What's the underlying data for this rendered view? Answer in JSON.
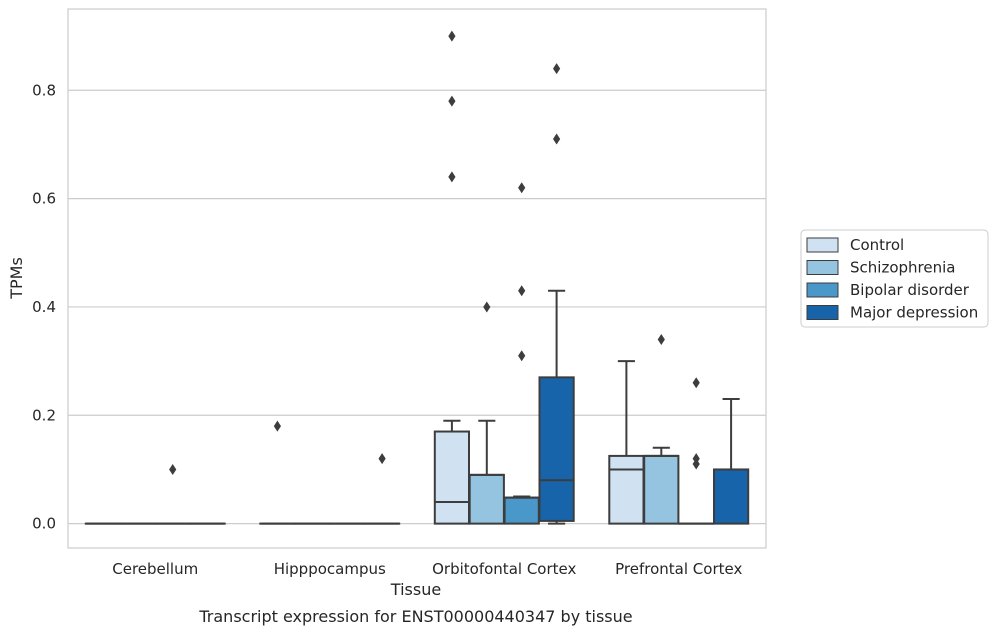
{
  "chart_data": {
    "type": "box",
    "title": "",
    "caption": "Transcript expression for ENST00000440347 by tissue",
    "xlabel": "Tissue",
    "ylabel": "TPMs",
    "ylim": [
      -0.045,
      0.95
    ],
    "yticks": [
      "0.0",
      "0.2",
      "0.4",
      "0.6",
      "0.8"
    ],
    "ytick_values": [
      0.0,
      0.2,
      0.4,
      0.6,
      0.8
    ],
    "grid": "horizontal",
    "legend_position": "right",
    "categories": [
      "Cerebellum",
      "Hipppocampus",
      "Orbitofontal Cortex",
      "Prefrontal Cortex"
    ],
    "series": [
      {
        "name": "Control",
        "color": "#d0e1f2",
        "boxes": [
          {
            "q1": 0,
            "median": 0,
            "q3": 0,
            "whislo": 0,
            "whishi": 0,
            "fliers": []
          },
          {
            "q1": 0,
            "median": 0,
            "q3": 0,
            "whislo": 0,
            "whishi": 0,
            "fliers": [
              0.18
            ]
          },
          {
            "q1": 0,
            "median": 0.04,
            "q3": 0.17,
            "whislo": 0,
            "whishi": 0.19,
            "fliers": [
              0.64,
              0.78,
              0.9
            ]
          },
          {
            "q1": 0,
            "median": 0.1,
            "q3": 0.125,
            "whislo": 0,
            "whishi": 0.3,
            "fliers": []
          }
        ]
      },
      {
        "name": "Schizophrenia",
        "color": "#94c4df",
        "boxes": [
          {
            "q1": 0,
            "median": 0,
            "q3": 0,
            "whislo": 0,
            "whishi": 0,
            "fliers": []
          },
          {
            "q1": 0,
            "median": 0,
            "q3": 0,
            "whislo": 0,
            "whishi": 0,
            "fliers": []
          },
          {
            "q1": 0,
            "median": 0.09,
            "q3": 0.09,
            "whislo": 0,
            "whishi": 0.19,
            "fliers": [
              0.4
            ]
          },
          {
            "q1": 0,
            "median": 0.125,
            "q3": 0.125,
            "whislo": 0,
            "whishi": 0.14,
            "fliers": [
              0.34
            ]
          }
        ]
      },
      {
        "name": "Bipolar disorder",
        "color": "#4a98c9",
        "boxes": [
          {
            "q1": 0,
            "median": 0,
            "q3": 0,
            "whislo": 0,
            "whishi": 0,
            "fliers": [
              0.1
            ]
          },
          {
            "q1": 0,
            "median": 0,
            "q3": 0,
            "whislo": 0,
            "whishi": 0,
            "fliers": []
          },
          {
            "q1": 0,
            "median": 0.048,
            "q3": 0.048,
            "whislo": 0,
            "whishi": 0.05,
            "fliers": [
              0.31,
              0.43,
              0.62
            ]
          },
          {
            "q1": 0,
            "median": 0,
            "q3": 0,
            "whislo": 0,
            "whishi": 0,
            "fliers": [
              0.11,
              0.12,
              0.26
            ]
          }
        ]
      },
      {
        "name": "Major depression",
        "color": "#1764ab",
        "boxes": [
          {
            "q1": 0,
            "median": 0,
            "q3": 0,
            "whislo": 0,
            "whishi": 0,
            "fliers": []
          },
          {
            "q1": 0,
            "median": 0,
            "q3": 0,
            "whislo": 0,
            "whishi": 0,
            "fliers": [
              0.12
            ]
          },
          {
            "q1": 0.005,
            "median": 0.08,
            "q3": 0.27,
            "whislo": 0,
            "whishi": 0.43,
            "fliers": [
              0.71,
              0.84
            ]
          },
          {
            "q1": 0,
            "median": 0.1,
            "q3": 0.1,
            "whislo": 0,
            "whishi": 0.23,
            "fliers": []
          }
        ]
      }
    ]
  }
}
